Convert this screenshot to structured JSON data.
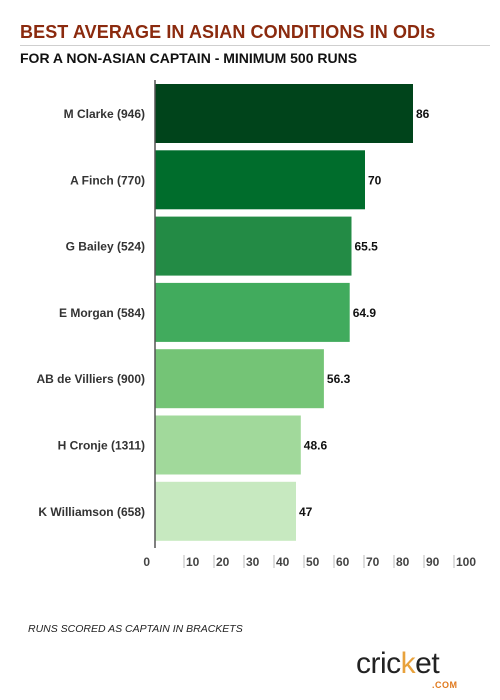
{
  "chart_data": {
    "type": "bar",
    "orientation": "horizontal",
    "title": "BEST AVERAGE IN ASIAN CONDITIONS IN ODIs",
    "subtitle": "FOR A NON-ASIAN CAPTAIN - MINIMUM 500 RUNS",
    "categories": [
      "M Clarke (946)",
      "A Finch (770)",
      "G Bailey (524)",
      "E Morgan (584)",
      "AB de Villiers (900)",
      "H Cronje (1311)",
      "K Williamson (658)"
    ],
    "values": [
      86,
      70,
      65.5,
      64.9,
      56.3,
      48.6,
      47
    ],
    "value_labels": [
      "86",
      "70",
      "65.5",
      "64.9",
      "56.3",
      "48.6",
      "47"
    ],
    "bar_colors": [
      "#00441b",
      "#006d2c",
      "#238b45",
      "#41ab5d",
      "#74c476",
      "#a1d99b",
      "#c7e9c0"
    ],
    "xlim": [
      0,
      100
    ],
    "xticks": [
      "0",
      "10",
      "20",
      "30",
      "40",
      "50",
      "60",
      "70",
      "80",
      "90",
      "100"
    ],
    "xlabel": "",
    "ylabel": "",
    "grid": false,
    "legend": "none"
  },
  "footnote": "RUNS SCORED AS CAPTAIN IN BRACKETS",
  "brand": {
    "word_start": "cric",
    "word_accent": "k",
    "word_end": "et",
    "domain": ".COM",
    "accent_color": "#e8a23c"
  },
  "colors": {
    "title": "#8b2a0e",
    "axis": "#555555"
  }
}
